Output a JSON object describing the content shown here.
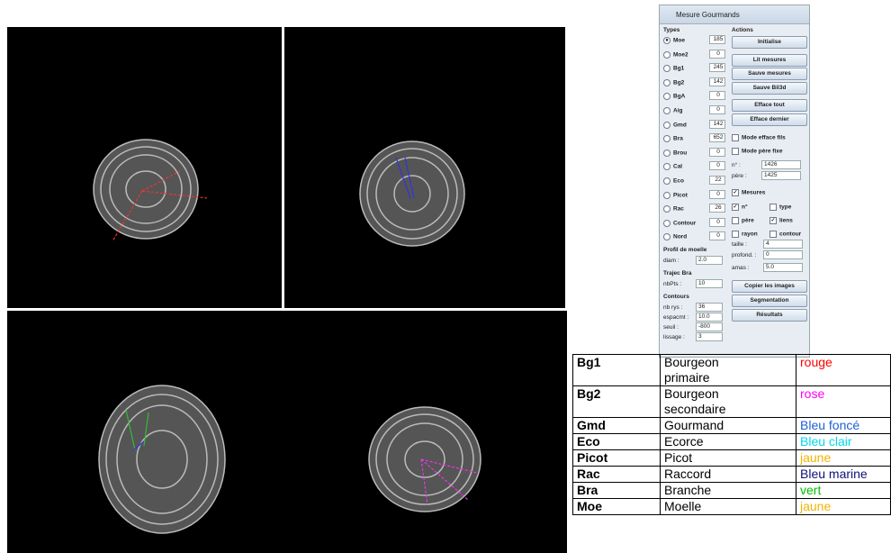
{
  "dialog": {
    "title": "Mesure Gourmands",
    "types_label": "Types",
    "actions_label": "Actions",
    "types": [
      {
        "name": "Moe",
        "count": "185",
        "selected": true
      },
      {
        "name": "Moe2",
        "count": "0"
      },
      {
        "name": "Bg1",
        "count": "245"
      },
      {
        "name": "Bg2",
        "count": "142"
      },
      {
        "name": "BgA",
        "count": "0"
      },
      {
        "name": "Aig",
        "count": "0"
      },
      {
        "name": "Gmd",
        "count": "142"
      },
      {
        "name": "Bra",
        "count": "652"
      },
      {
        "name": "Brou",
        "count": "0"
      },
      {
        "name": "Cal",
        "count": "0"
      },
      {
        "name": "Eco",
        "count": "22"
      },
      {
        "name": "Picot",
        "count": "0"
      },
      {
        "name": "Rac",
        "count": "26"
      },
      {
        "name": "Contour",
        "count": "0"
      },
      {
        "name": "Nord",
        "count": "0"
      }
    ],
    "buttons": [
      "Initialise",
      "Lit mesures",
      "Sauve mesures",
      "Sauve Bil3d",
      "Efface tout",
      "Efface dernier"
    ],
    "modes": [
      {
        "label": "Mode efface fils",
        "checked": false
      },
      {
        "label": "Mode père fixe",
        "checked": false
      }
    ],
    "ids": [
      {
        "label": "n° :",
        "value": "1426"
      },
      {
        "label": "père :",
        "value": "1425"
      }
    ],
    "mesures": {
      "label": "Mesures",
      "checked": true
    },
    "options": [
      {
        "label": "n°",
        "checked": true
      },
      {
        "label": "type",
        "checked": false
      },
      {
        "label": "père",
        "checked": false
      },
      {
        "label": "liens",
        "checked": true
      },
      {
        "label": "rayon",
        "checked": false
      },
      {
        "label": "contour",
        "checked": false
      }
    ],
    "params": [
      {
        "label": "taille :",
        "value": "4"
      },
      {
        "label": "profond. :",
        "value": "0"
      },
      {
        "label": "amas :",
        "value": "5.0"
      }
    ],
    "bottom_buttons": [
      "Copier les images",
      "Segmentation",
      "Résultats"
    ],
    "sections": [
      {
        "title": "Profil de moelle",
        "fields": [
          {
            "label": "diam :",
            "value": "2.0"
          }
        ]
      },
      {
        "title": "Trajec Bra",
        "fields": [
          {
            "label": "nbPts :",
            "value": "10"
          }
        ]
      },
      {
        "title": "Contours",
        "fields": [
          {
            "label": "nb rys :",
            "value": "36"
          },
          {
            "label": "espacmt :",
            "value": "10.0"
          },
          {
            "label": "seuil :",
            "value": "-800"
          },
          {
            "label": "lissage :",
            "value": "3"
          }
        ]
      }
    ]
  },
  "table": {
    "rows": [
      {
        "code": "Bg1",
        "name": "Bourgeon primaire",
        "color_name": "rouge",
        "color": "#ff0000"
      },
      {
        "code": "Bg2",
        "name": "Bourgeon secondaire",
        "color_name": "rose",
        "color": "#ff00ff"
      },
      {
        "code": "Gmd",
        "name": "Gourmand",
        "color_name": "Bleu foncé",
        "color": "#1f5fd6"
      },
      {
        "code": "Eco",
        "name": "Ecorce",
        "color_name": "Bleu clair",
        "color": "#00d8f0"
      },
      {
        "code": "Picot",
        "name": "Picot",
        "color_name": "jaune",
        "color": "#f0b400"
      },
      {
        "code": "Rac",
        "name": "Raccord",
        "color_name": "Bleu marine",
        "color": "#10107a"
      },
      {
        "code": "Bra",
        "name": "Branche",
        "color_name": "vert",
        "color": "#00c000"
      },
      {
        "code": "Moe",
        "name": "Moelle",
        "color_name": "jaune",
        "color": "#f0b400"
      }
    ]
  }
}
